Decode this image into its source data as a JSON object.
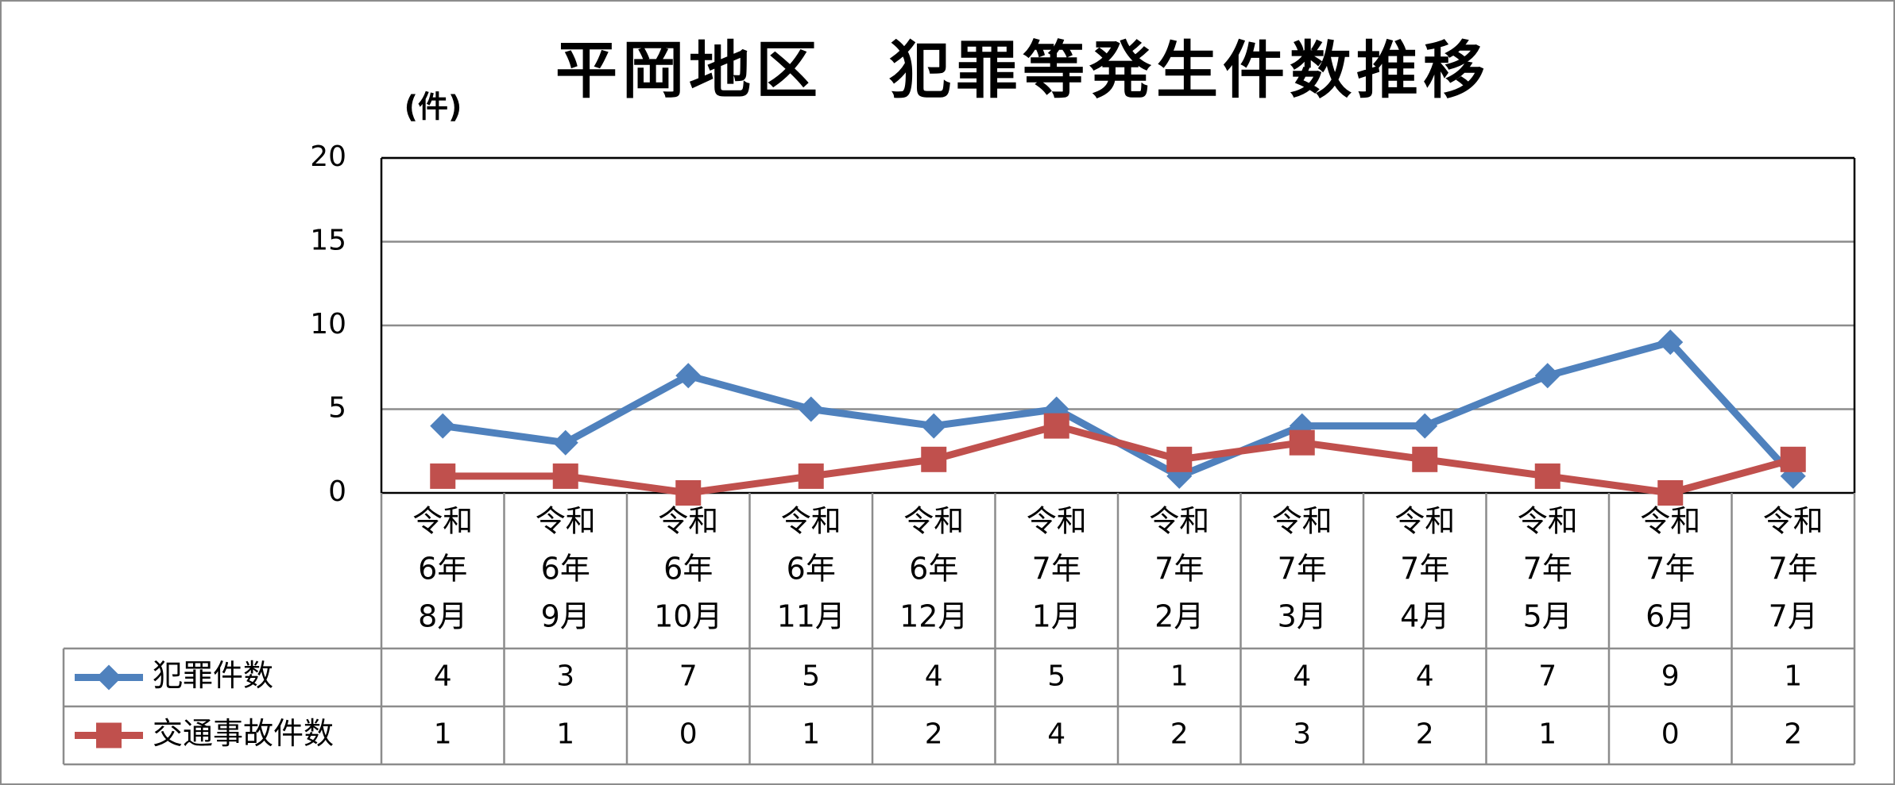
{
  "chart_data": {
    "type": "line",
    "title": "平岡地区　犯罪等発生件数推移",
    "ylabel": "(件)",
    "ylim": [
      0,
      20
    ],
    "yticks": [
      "0",
      "5",
      "10",
      "15",
      "20"
    ],
    "grid": true,
    "legend": "data-table",
    "categories": [
      [
        "令和",
        "6年",
        "8月"
      ],
      [
        "令和",
        "6年",
        "9月"
      ],
      [
        "令和",
        "6年",
        "10月"
      ],
      [
        "令和",
        "6年",
        "11月"
      ],
      [
        "令和",
        "6年",
        "12月"
      ],
      [
        "令和",
        "7年",
        "1月"
      ],
      [
        "令和",
        "7年",
        "2月"
      ],
      [
        "令和",
        "7年",
        "3月"
      ],
      [
        "令和",
        "7年",
        "4月"
      ],
      [
        "令和",
        "7年",
        "5月"
      ],
      [
        "令和",
        "7年",
        "6月"
      ],
      [
        "令和",
        "7年",
        "7月"
      ]
    ],
    "series": [
      {
        "name": "犯罪件数",
        "values": [
          4,
          3,
          7,
          5,
          4,
          5,
          1,
          4,
          4,
          7,
          9,
          1
        ],
        "color": "#4f81bd",
        "marker": "diamond"
      },
      {
        "name": "交通事故件数",
        "values": [
          1,
          1,
          0,
          1,
          2,
          4,
          2,
          3,
          2,
          1,
          0,
          2
        ],
        "color": "#c0504d",
        "marker": "square"
      }
    ]
  }
}
